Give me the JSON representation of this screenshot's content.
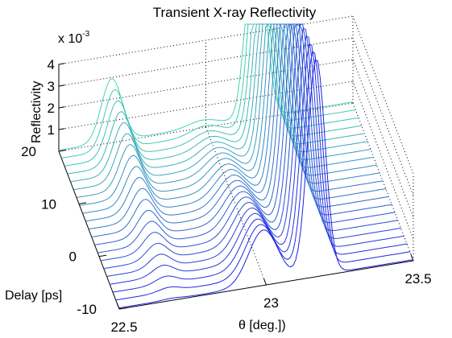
{
  "chart_data": {
    "type": "line",
    "title": "Transient X-ray Reflectivity",
    "xlabel": "θ [deg.])",
    "ylabel": "Delay [ps]",
    "zlabel": "Reflectivity",
    "z_multiplier": "x 10",
    "z_exponent": "-3",
    "xlim": [
      22.5,
      23.5
    ],
    "ylim": [
      -10,
      20
    ],
    "zlim": [
      0,
      4
    ],
    "x_ticks": [
      "22.5",
      "23",
      "23.5"
    ],
    "y_ticks": [
      "-10",
      "0",
      "10",
      "20"
    ],
    "z_ticks": [
      "1",
      "2",
      "3",
      "4"
    ],
    "view": "3d-waterfall",
    "colormap": [
      "#1e1ee6",
      "#4cf5a8"
    ],
    "grid": true,
    "delays": [
      -10,
      -8.5,
      -7,
      -5.5,
      -4,
      -2.5,
      -1,
      0.5,
      2,
      3.5,
      5,
      6.5,
      8,
      9.5,
      11,
      12.5,
      14,
      15.5,
      17,
      18.5,
      20
    ],
    "peaks": [
      {
        "center": 22.68,
        "width": 0.035,
        "amp_start": 0.05,
        "amp_end": 2.9
      },
      {
        "center": 22.99,
        "width": 0.05,
        "amp_start": 2.5,
        "amp_end": 0.3
      },
      {
        "center": 23.17,
        "width": 0.03,
        "amp_start": 10.0,
        "amp_end": 10.0
      }
    ],
    "baseline": 0.05
  }
}
